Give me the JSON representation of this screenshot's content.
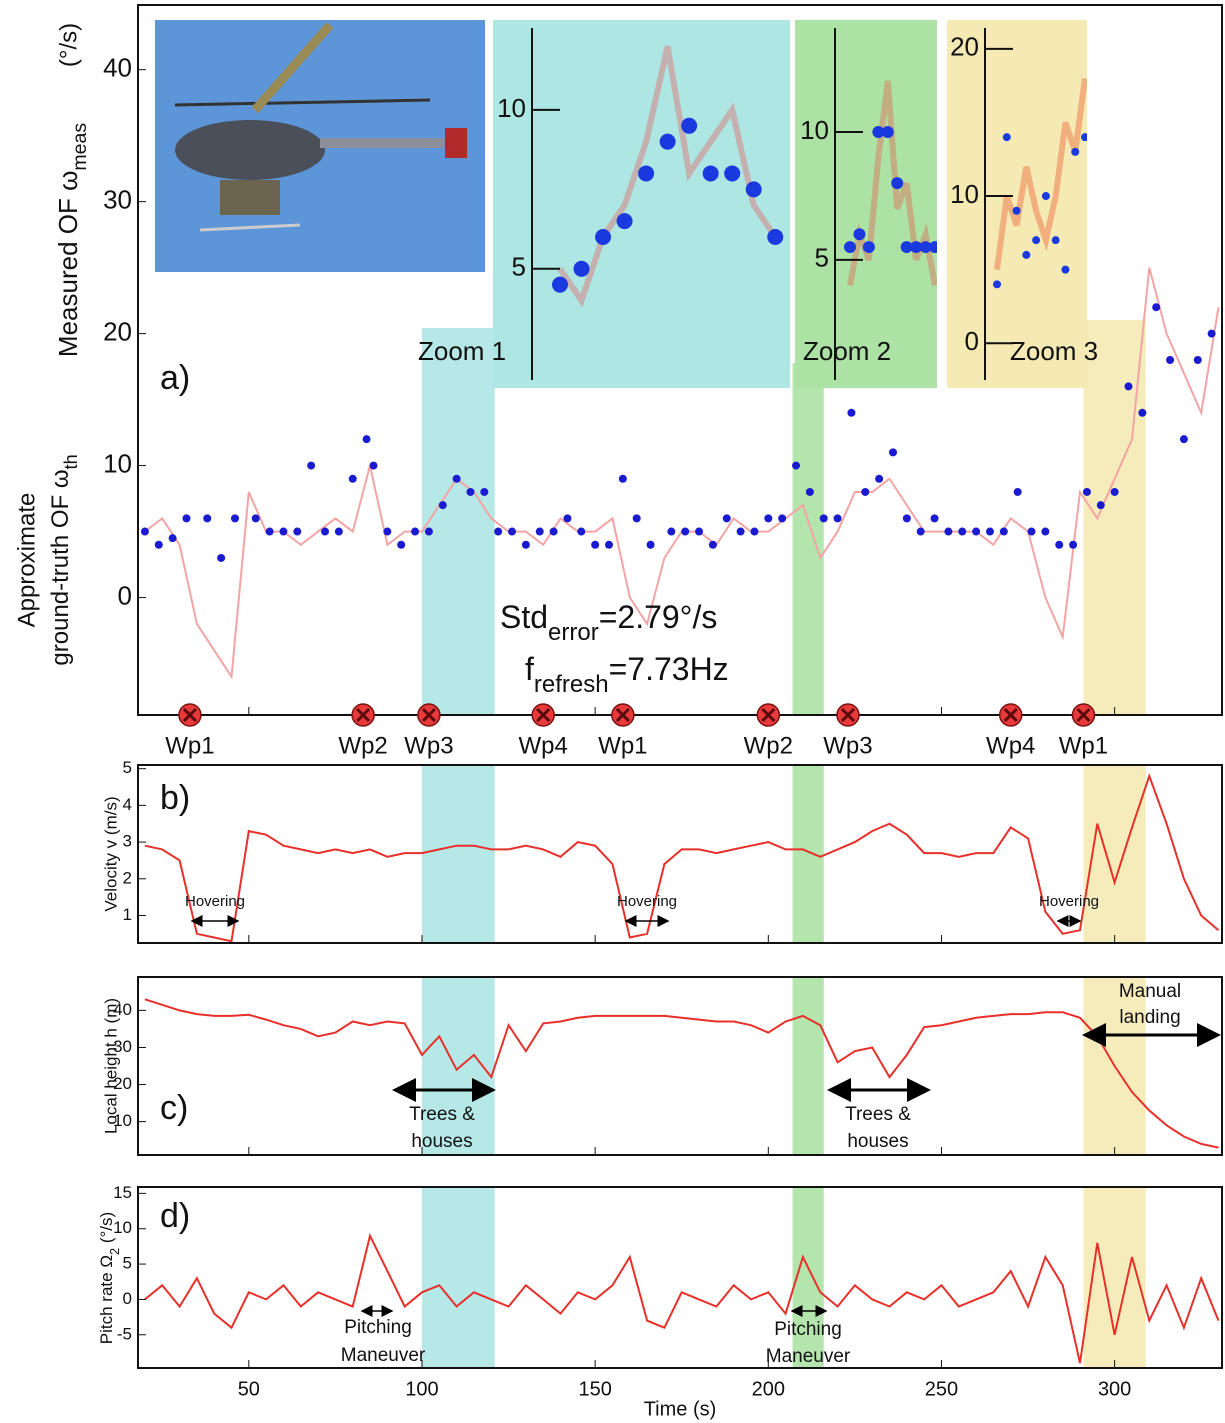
{
  "chart_data": [
    {
      "type": "line",
      "panel_label": "a)",
      "ylabel": {
        "base": "Measured OF ω",
        "sub": "meas"
      },
      "yunit": "(°/s)",
      "ylabel2_top": "Approximate",
      "ylabel2": {
        "base": "ground-truth OF ω",
        "sub": "th"
      },
      "xlim": [
        18,
        331
      ],
      "ylim": [
        -8.9,
        44.9
      ],
      "yticks": [
        0,
        10,
        20,
        30,
        40
      ],
      "xticks": [
        50,
        100,
        150,
        200,
        250,
        300
      ],
      "highlights": [
        {
          "x": [
            100,
            121
          ],
          "color": "#aee6e4"
        },
        {
          "x": [
            207,
            216
          ],
          "color": "#ace2a4"
        },
        {
          "x": [
            291,
            309
          ],
          "color": "#f5eab4"
        }
      ],
      "series": [
        {
          "mode": "line",
          "color": "#f4a4a4",
          "x": [
            20,
            25,
            30,
            35,
            40,
            45,
            50,
            55,
            60,
            65,
            70,
            75,
            80,
            85,
            90,
            95,
            100,
            105,
            110,
            115,
            120,
            125,
            130,
            135,
            140,
            145,
            150,
            155,
            160,
            165,
            170,
            175,
            180,
            185,
            190,
            195,
            200,
            205,
            210,
            215,
            220,
            225,
            230,
            235,
            240,
            245,
            250,
            255,
            260,
            265,
            270,
            275,
            280,
            285,
            290,
            295,
            300,
            305,
            310,
            315,
            320,
            325,
            330
          ],
          "values": [
            5,
            6,
            4,
            -2,
            -4,
            -6,
            8,
            5,
            5,
            4,
            5,
            6,
            5,
            10,
            4,
            5,
            5,
            7,
            9,
            8,
            6,
            5,
            5,
            4,
            6,
            5,
            5,
            6,
            0,
            -2,
            3,
            5,
            5,
            4,
            6,
            5,
            5,
            6,
            7,
            3,
            5,
            8,
            8,
            9,
            7,
            5,
            5,
            5,
            5,
            4,
            6,
            5,
            0,
            -3,
            8,
            6,
            9,
            12,
            25,
            20,
            17,
            14,
            22
          ]
        },
        {
          "mode": "markers",
          "color": "#1a1ad0",
          "x": [
            20,
            24,
            28,
            32,
            38,
            42,
            46,
            52,
            56,
            60,
            64,
            68,
            72,
            76,
            80,
            84,
            86,
            90,
            94,
            98,
            102,
            106,
            110,
            114,
            118,
            122,
            126,
            130,
            134,
            138,
            142,
            146,
            150,
            154,
            158,
            162,
            166,
            172,
            176,
            180,
            184,
            188,
            192,
            196,
            200,
            204,
            208,
            212,
            216,
            220,
            224,
            228,
            232,
            236,
            240,
            244,
            248,
            252,
            256,
            260,
            264,
            268,
            272,
            276,
            280,
            284,
            288,
            292,
            296,
            300,
            304,
            308,
            312,
            316,
            320,
            324,
            328
          ],
          "values": [
            5,
            4,
            4.5,
            6,
            6,
            3,
            6,
            6,
            5,
            5,
            5,
            10,
            5,
            5,
            9,
            12,
            10,
            5,
            4,
            5,
            5,
            7,
            9,
            8,
            8,
            5,
            5,
            4,
            5,
            5,
            6,
            5,
            4,
            4,
            9,
            6,
            4,
            5,
            5,
            5,
            4,
            6,
            5,
            5,
            6,
            6,
            10,
            8,
            6,
            6,
            14,
            8,
            9,
            11,
            6,
            5,
            6,
            5,
            5,
            5,
            5,
            5,
            8,
            5,
            5,
            4,
            4,
            8,
            7,
            8,
            16,
            14,
            22,
            18,
            12,
            18,
            20
          ]
        }
      ],
      "waypoints": [
        {
          "x": 33,
          "label": "Wp1"
        },
        {
          "x": 83,
          "label": "Wp2"
        },
        {
          "x": 102,
          "label": "Wp3"
        },
        {
          "x": 135,
          "label": "Wp4"
        },
        {
          "x": 158,
          "label": "Wp1"
        },
        {
          "x": 200,
          "label": "Wp2"
        },
        {
          "x": 223,
          "label": "Wp3"
        },
        {
          "x": 270,
          "label": "Wp4"
        },
        {
          "x": 291,
          "label": "Wp1"
        }
      ],
      "stats": [
        {
          "base": "Std",
          "sub": "error",
          "rest": "=2.79°/s"
        },
        {
          "base": "f",
          "sub": "refresh",
          "rest": "=7.73Hz"
        }
      ]
    },
    {
      "type": "line",
      "panel_label": "b)",
      "ylabel": "Velocity v (m/s)",
      "xlim": [
        18,
        331
      ],
      "ylim": [
        0.25,
        5.1
      ],
      "yticks": [
        1,
        2,
        3,
        4,
        5
      ],
      "xticks": [
        50,
        100,
        150,
        200,
        250,
        300
      ],
      "highlights": [
        {
          "x": [
            100,
            121
          ],
          "color": "#aee6e4"
        },
        {
          "x": [
            207,
            216
          ],
          "color": "#ace2a4"
        },
        {
          "x": [
            291,
            309
          ],
          "color": "#f5eab4"
        }
      ],
      "x": [
        20,
        25,
        30,
        35,
        40,
        45,
        50,
        55,
        60,
        65,
        70,
        75,
        80,
        85,
        90,
        95,
        100,
        105,
        110,
        115,
        120,
        125,
        130,
        135,
        140,
        145,
        150,
        155,
        160,
        165,
        170,
        175,
        180,
        185,
        190,
        195,
        200,
        205,
        210,
        215,
        220,
        225,
        230,
        235,
        240,
        245,
        250,
        255,
        260,
        265,
        270,
        275,
        280,
        285,
        290,
        295,
        300,
        305,
        310,
        315,
        320,
        325,
        330
      ],
      "series": [
        {
          "mode": "line",
          "color": "#e8302a",
          "values": [
            2.9,
            2.8,
            2.5,
            0.5,
            0.4,
            0.3,
            3.3,
            3.2,
            2.9,
            2.8,
            2.7,
            2.8,
            2.7,
            2.8,
            2.6,
            2.7,
            2.7,
            2.8,
            2.9,
            2.9,
            2.8,
            2.8,
            2.9,
            2.8,
            2.6,
            3.0,
            2.9,
            2.4,
            0.4,
            0.5,
            2.4,
            2.8,
            2.8,
            2.7,
            2.8,
            2.9,
            3.0,
            2.8,
            2.8,
            2.6,
            2.8,
            3.0,
            3.3,
            3.5,
            3.2,
            2.7,
            2.7,
            2.6,
            2.7,
            2.7,
            3.4,
            3.1,
            1.1,
            0.5,
            0.6,
            3.5,
            1.9,
            3.4,
            4.8,
            3.5,
            2.0,
            1.0,
            0.6
          ]
        }
      ],
      "annotations": [
        {
          "lines": [
            "Hovering"
          ]
        },
        {
          "lines": [
            "Hovering"
          ]
        },
        {
          "lines": [
            "Hovering"
          ]
        }
      ]
    },
    {
      "type": "line",
      "panel_label": "c)",
      "ylabel": "Local height h (m)",
      "xlim": [
        18,
        331
      ],
      "ylim": [
        1,
        49
      ],
      "yticks": [
        10,
        20,
        30,
        40
      ],
      "xticks": [
        50,
        100,
        150,
        200,
        250,
        300
      ],
      "highlights": [
        {
          "x": [
            100,
            121
          ],
          "color": "#aee6e4"
        },
        {
          "x": [
            207,
            216
          ],
          "color": "#ace2a4"
        },
        {
          "x": [
            291,
            309
          ],
          "color": "#f5eab4"
        }
      ],
      "x": [
        20,
        25,
        30,
        35,
        40,
        45,
        50,
        55,
        60,
        65,
        70,
        75,
        80,
        85,
        90,
        95,
        100,
        105,
        110,
        115,
        120,
        125,
        130,
        135,
        140,
        145,
        150,
        155,
        160,
        165,
        170,
        175,
        180,
        185,
        190,
        195,
        200,
        205,
        210,
        215,
        220,
        225,
        230,
        235,
        240,
        245,
        250,
        255,
        260,
        265,
        270,
        275,
        280,
        285,
        290,
        295,
        300,
        305,
        310,
        315,
        320,
        325,
        330
      ],
      "series": [
        {
          "mode": "line",
          "color": "#e8302a",
          "values": [
            43,
            41.5,
            40,
            39,
            38.5,
            38.5,
            38.8,
            37.5,
            36,
            35,
            33,
            34,
            37,
            36,
            37,
            36.5,
            28,
            33,
            24,
            28,
            22,
            36,
            29,
            36.5,
            37,
            38,
            38.5,
            38.5,
            38.5,
            38.5,
            38.5,
            38,
            37.5,
            37,
            37,
            36,
            34,
            37,
            38.5,
            36,
            26,
            29,
            30,
            22,
            28,
            35.5,
            36,
            37,
            38,
            38.5,
            39,
            39,
            39.5,
            39.5,
            38,
            33,
            25,
            18,
            13,
            9,
            6,
            4,
            3
          ]
        }
      ],
      "annotations": [
        {
          "lines": [
            "Trees &",
            "houses"
          ]
        },
        {
          "lines": [
            "Trees &",
            "houses"
          ]
        },
        {
          "lines": [
            "Manual",
            "landing"
          ]
        }
      ]
    },
    {
      "type": "line",
      "panel_label": "d)",
      "ylabel": {
        "base": "Pitch rate Ω",
        "sub": "2",
        "rest": " (°/s)"
      },
      "xlabel": "Time (s)",
      "xlim": [
        18,
        331
      ],
      "ylim": [
        -9.7,
        15.9
      ],
      "yticks": [
        -5,
        0,
        5,
        10,
        15
      ],
      "xticks": [
        50,
        100,
        150,
        200,
        250,
        300
      ],
      "highlights": [
        {
          "x": [
            100,
            121
          ],
          "color": "#aee6e4"
        },
        {
          "x": [
            207,
            216
          ],
          "color": "#ace2a4"
        },
        {
          "x": [
            291,
            309
          ],
          "color": "#f5eab4"
        }
      ],
      "x": [
        20,
        25,
        30,
        35,
        40,
        45,
        50,
        55,
        60,
        65,
        70,
        75,
        80,
        85,
        90,
        95,
        100,
        105,
        110,
        115,
        120,
        125,
        130,
        135,
        140,
        145,
        150,
        155,
        160,
        165,
        170,
        175,
        180,
        185,
        190,
        195,
        200,
        205,
        210,
        215,
        220,
        225,
        230,
        235,
        240,
        245,
        250,
        255,
        260,
        265,
        270,
        275,
        280,
        285,
        290,
        295,
        300,
        305,
        310,
        315,
        320,
        325,
        330
      ],
      "series": [
        {
          "mode": "line",
          "color": "#e8302a",
          "values": [
            0,
            2,
            -1,
            3,
            -2,
            -4,
            1,
            0,
            2,
            -1,
            1,
            0,
            -1,
            9,
            4,
            -1,
            1,
            2,
            -1,
            1,
            0,
            -1,
            2,
            0,
            -2,
            1,
            0,
            2,
            6,
            -3,
            -4,
            1,
            0,
            -1,
            2,
            0,
            1,
            -2,
            6,
            1,
            -1,
            2,
            0,
            -1,
            1,
            0,
            2,
            -1,
            0,
            1,
            4,
            -1,
            6,
            2,
            -9,
            8,
            -5,
            6,
            -3,
            2,
            -4,
            3,
            -3
          ]
        }
      ],
      "annotations": [
        {
          "lines": [
            "Pitching",
            "Maneuver"
          ]
        },
        {
          "lines": [
            "Pitching",
            "Maneuver"
          ]
        }
      ]
    },
    {
      "type": "scatter",
      "label": "Zoom 1",
      "background": "#aee6e4",
      "xlim": [
        100,
        121
      ],
      "ylim": [
        1.5,
        12.2
      ],
      "yticks": [
        5,
        10
      ],
      "series": [
        {
          "mode": "line",
          "color": "#c9a3a0",
          "x": [
            100,
            102,
            104,
            106,
            108,
            110,
            112,
            114,
            116,
            118,
            120
          ],
          "values": [
            5,
            4,
            6,
            7,
            9,
            12,
            8,
            9,
            10,
            7,
            6
          ]
        },
        {
          "mode": "markers",
          "color": "#1a3ae0",
          "x": [
            100,
            102,
            104,
            106,
            108,
            110,
            112,
            114,
            116,
            118,
            120
          ],
          "values": [
            4.5,
            5,
            6,
            6.5,
            8,
            9,
            9.5,
            8,
            8,
            7.5,
            6
          ]
        }
      ]
    },
    {
      "type": "scatter",
      "label": "Zoom 2",
      "background": "#ace2a4",
      "xlim": [
        207,
        216
      ],
      "ylim": [
        0.3,
        13.6
      ],
      "yticks": [
        5,
        10
      ],
      "series": [
        {
          "mode": "line",
          "color": "#c9a07a",
          "x": [
            207,
            208,
            209,
            210,
            211,
            212,
            213,
            214,
            215,
            216
          ],
          "values": [
            4,
            6,
            5,
            9,
            12,
            7,
            8,
            5,
            6,
            4
          ]
        },
        {
          "mode": "markers",
          "color": "#1a3ae0",
          "x": [
            207,
            208,
            209,
            210,
            211,
            212,
            213,
            214,
            215,
            216
          ],
          "values": [
            5.5,
            6,
            5.5,
            10,
            10,
            8,
            5.5,
            5.5,
            5.5,
            5.5
          ]
        }
      ]
    },
    {
      "type": "scatter",
      "label": "Zoom 3",
      "background": "#f5eab4",
      "xlim": [
        291,
        309
      ],
      "ylim": [
        -2.5,
        20.6
      ],
      "yticks": [
        0,
        10,
        20
      ],
      "series": [
        {
          "mode": "line",
          "color": "#f0a070",
          "x": [
            291,
            293,
            295,
            297,
            299,
            301,
            303,
            305,
            307,
            309
          ],
          "values": [
            5,
            10,
            8,
            12,
            9,
            7,
            10,
            15,
            13,
            18
          ]
        },
        {
          "mode": "markers",
          "color": "#1a3ae0",
          "x": [
            291,
            293,
            295,
            297,
            299,
            301,
            303,
            305,
            307,
            309
          ],
          "values": [
            4,
            14,
            9,
            6,
            7,
            10,
            7,
            5,
            13,
            14
          ]
        }
      ]
    }
  ]
}
